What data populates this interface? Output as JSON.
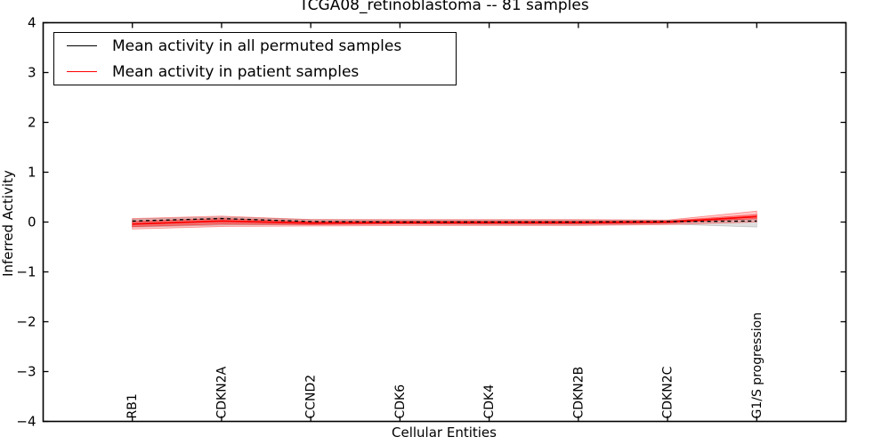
{
  "chart_data": {
    "type": "line",
    "title": "TCGA08_retinoblastoma -- 81 samples",
    "xlabel": "Cellular Entities",
    "ylabel": "Inferred Activity",
    "ylim": [
      -4,
      4
    ],
    "yticks": [
      -4,
      -3,
      -2,
      -1,
      0,
      1,
      2,
      3,
      4
    ],
    "grid": false,
    "legend_position": "upper-left",
    "categories": [
      "RB1",
      "CDKN2A",
      "CCND2",
      "CDK6",
      "CDK4",
      "CDKN2B",
      "CDKN2C",
      "G1/S progression"
    ],
    "series": [
      {
        "name": "Mean activity in all permuted samples",
        "color": "#000000",
        "dash": "4 3.6",
        "width": 1.4,
        "values": [
          0.02,
          0.07,
          0.01,
          0.0,
          0.0,
          0.0,
          0.01,
          0.02
        ]
      },
      {
        "name": "Mean activity in patient samples",
        "color": "#ff0000",
        "dash": "",
        "width": 1.8,
        "values": [
          -0.04,
          0.02,
          -0.02,
          -0.01,
          -0.01,
          -0.01,
          0.0,
          0.11
        ]
      }
    ],
    "bands": [
      {
        "name": "permuted-std-band",
        "color": "#888888",
        "alpha": 0.28,
        "upper": [
          0.06,
          0.1,
          0.05,
          0.04,
          0.04,
          0.04,
          0.04,
          0.06
        ],
        "lower": [
          -0.1,
          -0.06,
          -0.05,
          -0.04,
          -0.05,
          -0.05,
          -0.04,
          -0.1
        ]
      },
      {
        "name": "patient-std-band",
        "color": "#ff0000",
        "alpha": 0.22,
        "upper": [
          0.07,
          0.12,
          0.05,
          0.05,
          0.05,
          0.05,
          0.04,
          0.22
        ],
        "lower": [
          -0.14,
          -0.09,
          -0.08,
          -0.07,
          -0.07,
          -0.07,
          -0.05,
          0.0
        ]
      },
      {
        "name": "patient-sem-band",
        "color": "#ff0000",
        "alpha": 0.34,
        "upper": [
          0.01,
          0.07,
          0.01,
          0.02,
          0.02,
          0.02,
          0.02,
          0.15
        ],
        "lower": [
          -0.09,
          -0.04,
          -0.05,
          -0.04,
          -0.04,
          -0.04,
          -0.02,
          0.07
        ]
      }
    ],
    "legend": [
      {
        "label": "Mean activity in all permuted samples",
        "color": "#000000"
      },
      {
        "label": "Mean activity in patient samples",
        "color": "#ff0000"
      }
    ]
  }
}
